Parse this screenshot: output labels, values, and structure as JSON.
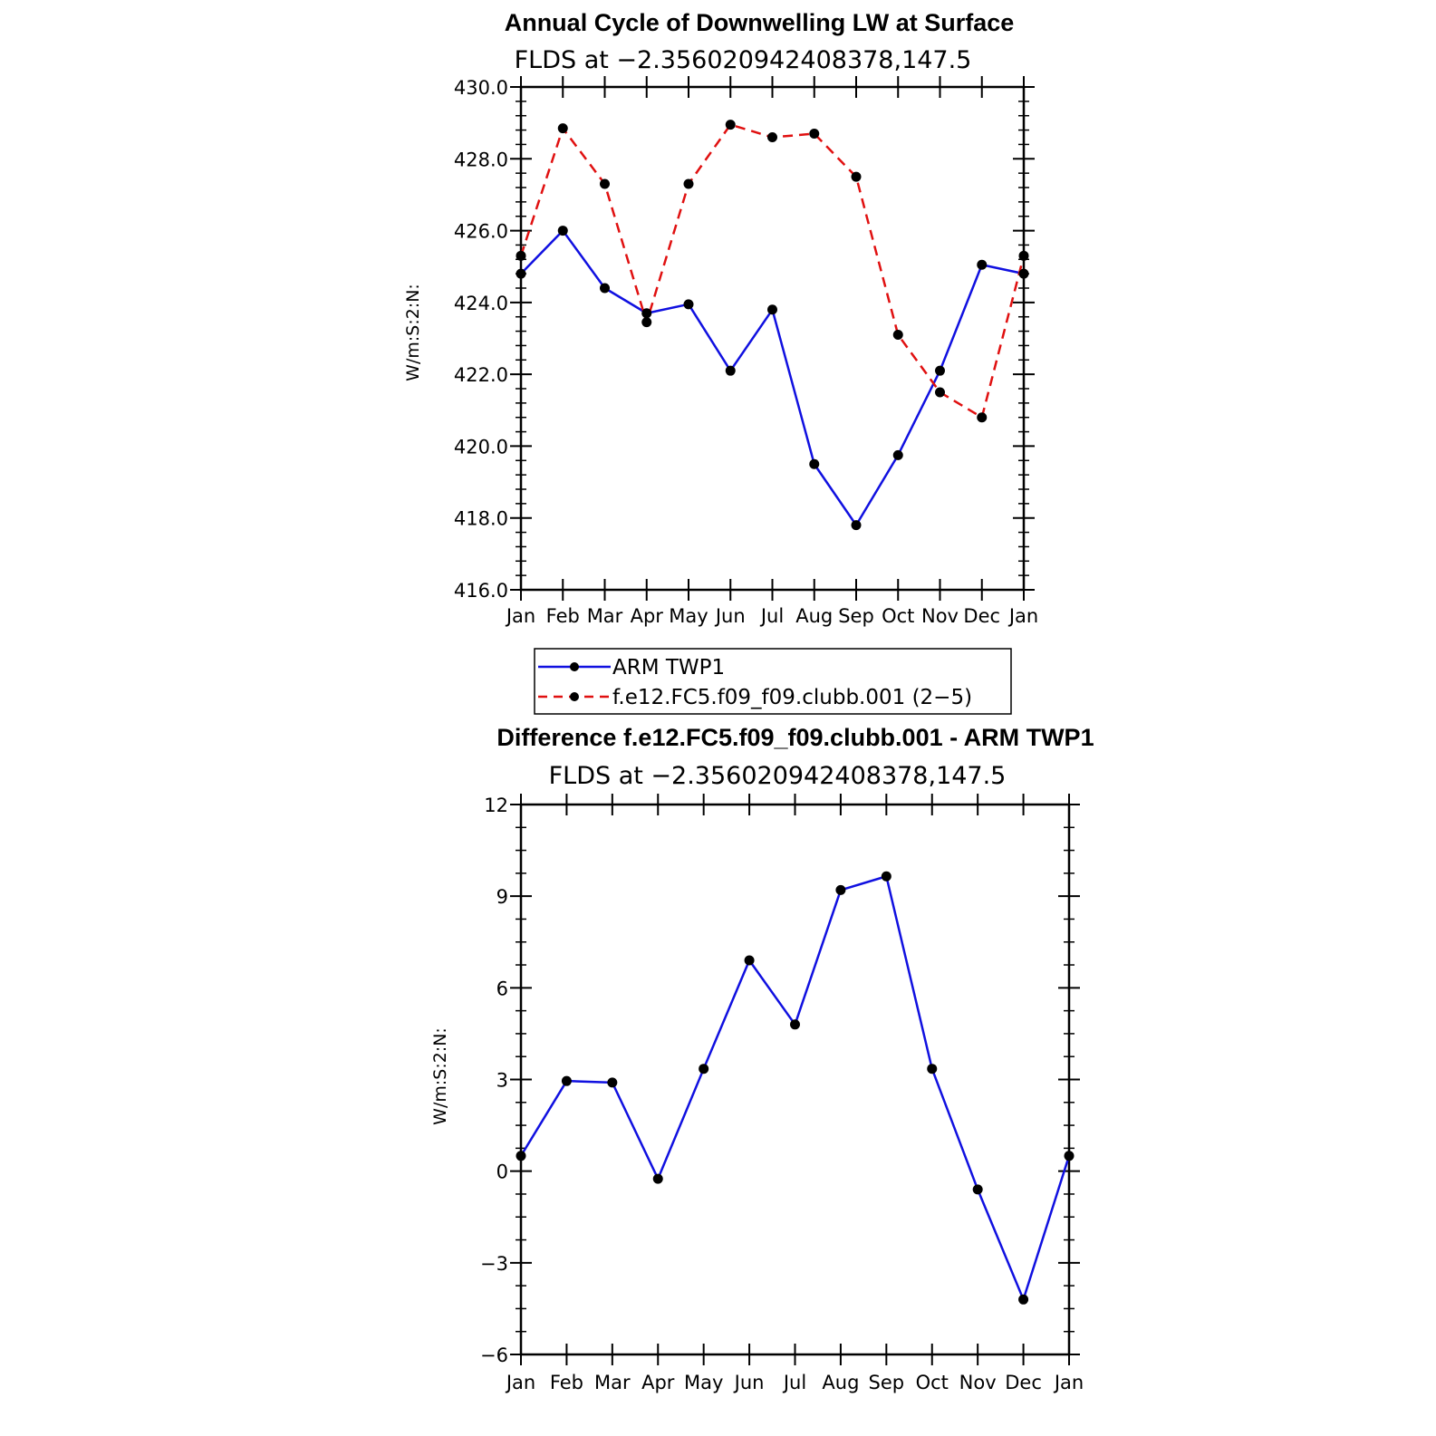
{
  "chart_data": [
    {
      "type": "line",
      "title": "Annual Cycle of Downwelling LW at Surface",
      "subtitle": "FLDS at −2.356020942408378,147.5",
      "ylabel": "W/m:S:2:N:",
      "ylim": [
        416,
        430
      ],
      "ytick_values": [
        416,
        418,
        420,
        422,
        424,
        426,
        428,
        430
      ],
      "ytick_labels": [
        "416.0",
        "418.0",
        "420.0",
        "422.0",
        "424.0",
        "426.0",
        "428.0",
        "430.0"
      ],
      "categories": [
        "Jan",
        "Feb",
        "Mar",
        "Apr",
        "May",
        "Jun",
        "Jul",
        "Aug",
        "Sep",
        "Oct",
        "Nov",
        "Dec",
        "Jan"
      ],
      "series": [
        {
          "name": "ARM TWP1",
          "color": "#1010e0",
          "style": "solid",
          "values": [
            424.8,
            426.0,
            424.4,
            423.7,
            423.95,
            422.1,
            423.8,
            419.5,
            417.8,
            419.75,
            422.1,
            425.05,
            424.8
          ]
        },
        {
          "name": "f.e12.FC5.f09_f09.clubb.001 (2−5)",
          "color": "#e01010",
          "style": "dashed",
          "values": [
            425.3,
            428.85,
            427.3,
            423.45,
            427.3,
            428.95,
            428.6,
            428.7,
            427.5,
            423.1,
            421.5,
            420.8,
            425.3
          ]
        }
      ]
    },
    {
      "type": "line",
      "title": "Difference f.e12.FC5.f09_f09.clubb.001 - ARM TWP1",
      "subtitle": "FLDS at −2.356020942408378,147.5",
      "ylabel": "W/m:S:2:N:",
      "ylim": [
        -6,
        12
      ],
      "ytick_values": [
        -6,
        -3,
        0,
        3,
        6,
        9,
        12
      ],
      "ytick_labels": [
        "−6",
        "−3",
        "0",
        "3",
        "6",
        "9",
        "12"
      ],
      "categories": [
        "Jan",
        "Feb",
        "Mar",
        "Apr",
        "May",
        "Jun",
        "Jul",
        "Aug",
        "Sep",
        "Oct",
        "Nov",
        "Dec",
        "Jan"
      ],
      "series": [
        {
          "name": "",
          "color": "#1010e0",
          "style": "solid",
          "values": [
            0.5,
            2.95,
            2.9,
            -0.25,
            3.35,
            6.9,
            4.8,
            9.2,
            9.65,
            3.35,
            -0.6,
            -4.2,
            0.5
          ]
        }
      ]
    }
  ]
}
